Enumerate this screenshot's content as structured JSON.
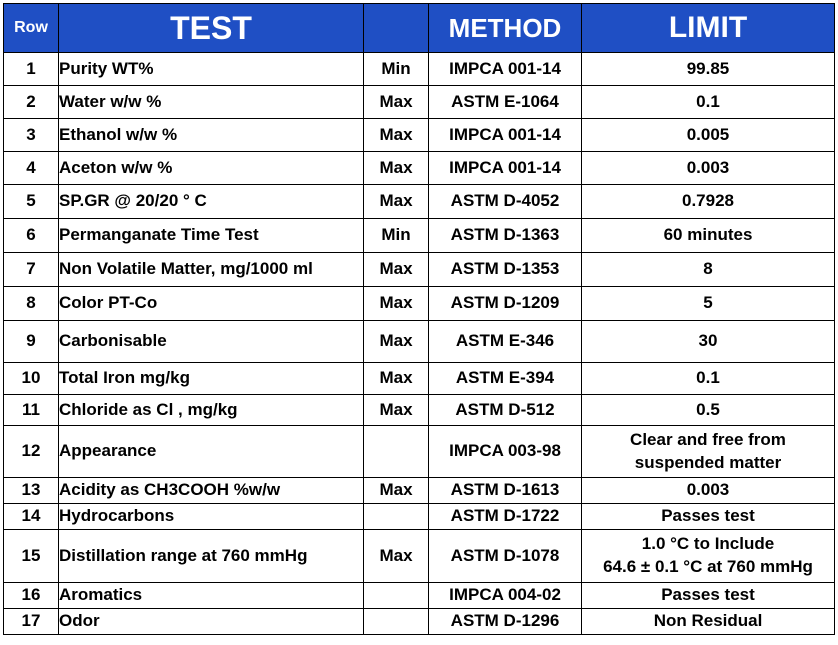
{
  "headers": {
    "row": "Row",
    "test": "TEST",
    "minmax": "",
    "method": "METHOD",
    "limit": "LIMIT"
  },
  "rows": [
    {
      "no": "1",
      "test": "Purity WT%",
      "minmax": "Min",
      "method": "IMPCA 001-14",
      "limit": "99.85"
    },
    {
      "no": "2",
      "test": "Water w/w %",
      "minmax": "Max",
      "method": "ASTM E-1064",
      "limit": "0.1"
    },
    {
      "no": "3",
      "test": "Ethanol w/w %",
      "minmax": "Max",
      "method": "IMPCA 001-14",
      "limit": "0.005"
    },
    {
      "no": "4",
      "test": "Aceton w/w %",
      "minmax": "Max",
      "method": "IMPCA 001-14",
      "limit": "0.003"
    },
    {
      "no": "5",
      "test": "SP.GR @ 20/20 ° C",
      "minmax": "Max",
      "method": "ASTM D-4052",
      "limit": "0.7928"
    },
    {
      "no": "6",
      "test": "Permanganate Time Test",
      "minmax": "Min",
      "method": "ASTM D-1363",
      "limit": "60 minutes"
    },
    {
      "no": "7",
      "test": "Non Volatile Matter, mg/1000 ml",
      "minmax": "Max",
      "method": "ASTM D-1353",
      "limit": "8"
    },
    {
      "no": "8",
      "test": "Color PT-Co",
      "minmax": "Max",
      "method": "ASTM D-1209",
      "limit": "5"
    },
    {
      "no": "9",
      "test": "Carbonisable",
      "minmax": "Max",
      "method": "ASTM E-346",
      "limit": "30"
    },
    {
      "no": "10",
      "test": "Total Iron mg/kg",
      "minmax": "Max",
      "method": "ASTM E-394",
      "limit": "0.1"
    },
    {
      "no": "11",
      "test": "Chloride as Cl , mg/kg",
      "minmax": "Max",
      "method": "ASTM D-512",
      "limit": "0.5"
    },
    {
      "no": "12",
      "test": "Appearance",
      "minmax": "",
      "method": "IMPCA 003-98",
      "limit_line1": "Clear and free from",
      "limit_line2": "suspended matter"
    },
    {
      "no": "13",
      "test": "Acidity as CH3COOH %w/w",
      "minmax": "Max",
      "method": "ASTM D-1613",
      "limit": "0.003"
    },
    {
      "no": "14",
      "test": "Hydrocarbons",
      "minmax": "",
      "method": "ASTM D-1722",
      "limit": "Passes test"
    },
    {
      "no": "15",
      "test": "Distillation range at 760 mmHg",
      "minmax": "Max",
      "method": "ASTM D-1078",
      "limit_line1": "1.0 °C to Include",
      "limit_line2": "64.6 ± 0.1 °C at 760 mmHg"
    },
    {
      "no": "16",
      "test": "Aromatics",
      "minmax": "",
      "method": "IMPCA 004-02",
      "limit": "Passes test"
    },
    {
      "no": "17",
      "test": "Odor",
      "minmax": "",
      "method": "ASTM D-1296",
      "limit": "Non Residual"
    }
  ],
  "colors": {
    "header_bg": "#1f4fc4",
    "header_text": "#ffffff",
    "border": "#000000"
  }
}
